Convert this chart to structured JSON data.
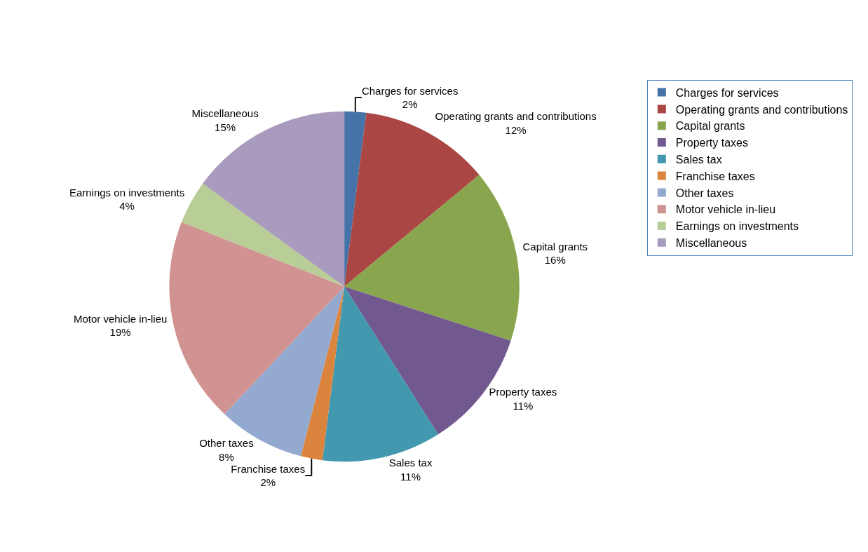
{
  "chart_data": {
    "type": "pie",
    "categories": [
      "Charges for services",
      "Operating grants and contributions",
      "Capital grants",
      "Property taxes",
      "Sales tax",
      "Franchise taxes",
      "Other taxes",
      "Motor vehicle in-lieu",
      "Earnings on investments",
      "Miscellaneous"
    ],
    "values": [
      2,
      12,
      16,
      11,
      11,
      2,
      8,
      19,
      4,
      15
    ],
    "colors": [
      "#4572a7",
      "#aa4643",
      "#89a54e",
      "#71588f",
      "#4198af",
      "#db843d",
      "#93a9cf",
      "#d19392",
      "#b9cd96",
      "#a99bbd"
    ],
    "value_labels": [
      "2%",
      "12%",
      "16%",
      "11%",
      "11%",
      "2%",
      "8%",
      "19%",
      "4%",
      "15%"
    ],
    "legend": "top right"
  }
}
